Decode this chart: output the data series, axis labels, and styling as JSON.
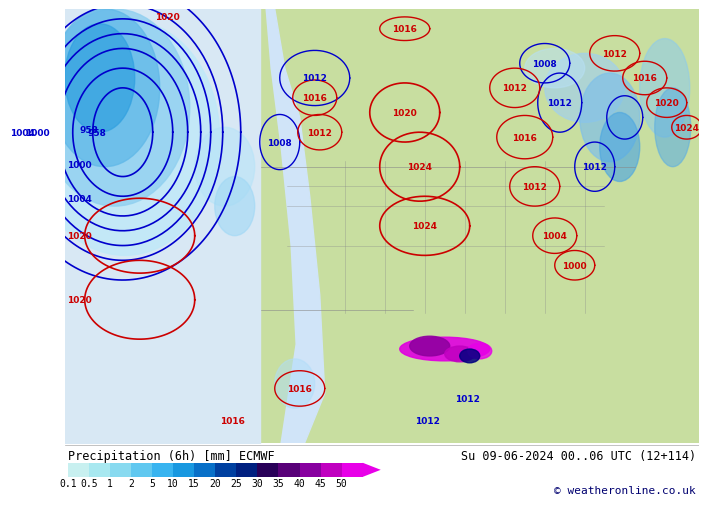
{
  "title_left": "Precipitation (6h) [mm] ECMWF",
  "title_right": "Su 09-06-2024 00..06 UTC (12+114)",
  "copyright": "© weatheronline.co.uk",
  "colorbar_values": [
    "0.1",
    "0.5",
    "1",
    "2",
    "5",
    "10",
    "15",
    "20",
    "25",
    "30",
    "35",
    "40",
    "45",
    "50"
  ],
  "colorbar_colors": [
    "#c8f0f0",
    "#a8e8f0",
    "#88daf0",
    "#60c8f0",
    "#38b4f0",
    "#1898e0",
    "#0870c8",
    "#0040a0",
    "#002080",
    "#280058",
    "#580078",
    "#8800a0",
    "#c000c0",
    "#e800e8"
  ],
  "colorbar_arrow_color": "#e800e8",
  "background_color": "#ffffff",
  "ocean_color": "#e8f0f8",
  "land_color": "#c8e0a8",
  "precip_light_color": "#b0ddf0",
  "precip_mid_color": "#60b8e8",
  "precip_dark_color": "#0040a0",
  "precip_magenta_color": "#e000e0",
  "precip_violet_color": "#8000a0"
}
